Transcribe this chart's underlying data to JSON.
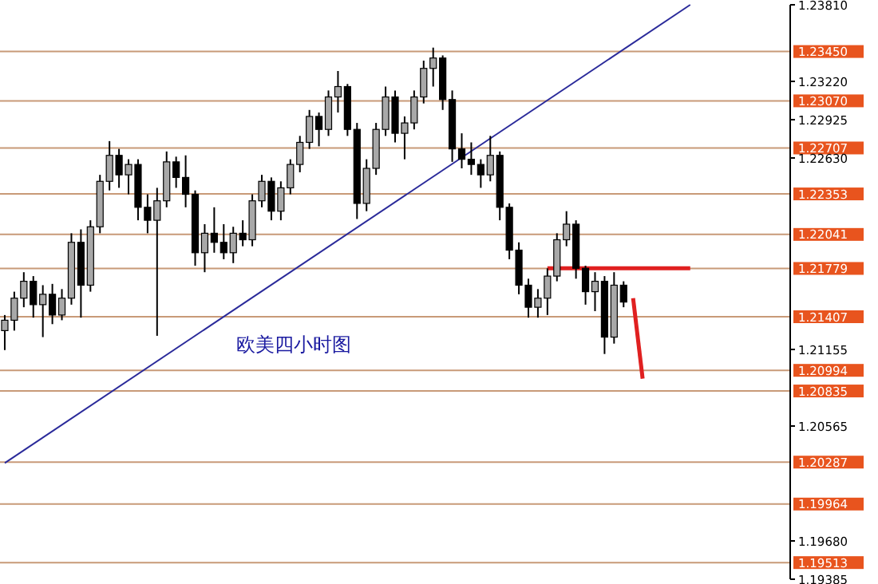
{
  "chart_data": {
    "type": "candlestick",
    "categories": [
      null,
      null,
      null,
      null,
      null,
      null,
      null,
      null,
      null,
      null,
      null,
      null,
      null,
      null,
      null,
      null,
      null,
      null,
      null,
      null,
      null,
      null,
      null,
      null,
      null,
      null,
      null,
      null,
      null,
      null,
      null,
      null,
      null,
      null,
      null,
      null,
      null,
      null,
      null,
      null,
      null,
      null,
      null,
      null,
      null,
      null,
      null,
      null,
      null,
      null,
      null,
      null,
      null,
      null,
      null,
      null,
      null,
      null,
      null,
      null,
      null,
      null,
      null,
      null,
      null,
      null,
      null,
      null,
      null,
      null,
      null,
      null,
      null,
      null,
      null,
      null,
      null,
      null,
      null,
      null,
      null,
      null,
      null
    ],
    "ohlc": [
      [
        1.213,
        1.2142,
        1.2115,
        1.2138
      ],
      [
        1.2138,
        1.216,
        1.213,
        1.2155
      ],
      [
        1.2155,
        1.2175,
        1.2148,
        1.2168
      ],
      [
        1.2168,
        1.2172,
        1.214,
        1.215
      ],
      [
        1.215,
        1.2165,
        1.2125,
        1.2158
      ],
      [
        1.2158,
        1.2166,
        1.2135,
        1.2142
      ],
      [
        1.2142,
        1.2162,
        1.2138,
        1.2155
      ],
      [
        1.2155,
        1.2205,
        1.215,
        1.2198
      ],
      [
        1.2198,
        1.2208,
        1.214,
        1.2165
      ],
      [
        1.2165,
        1.2215,
        1.216,
        1.221
      ],
      [
        1.221,
        1.225,
        1.2205,
        1.2245
      ],
      [
        1.2245,
        1.2276,
        1.2238,
        1.2265
      ],
      [
        1.2265,
        1.227,
        1.224,
        1.225
      ],
      [
        1.225,
        1.2262,
        1.2235,
        1.2258
      ],
      [
        1.2258,
        1.2262,
        1.2215,
        1.2225
      ],
      [
        1.2225,
        1.2235,
        1.2205,
        1.2215
      ],
      [
        1.2215,
        1.224,
        1.2126,
        1.223
      ],
      [
        1.223,
        1.2268,
        1.2225,
        1.226
      ],
      [
        1.226,
        1.2264,
        1.224,
        1.2248
      ],
      [
        1.2248,
        1.2265,
        1.2225,
        1.2235
      ],
      [
        1.2235,
        1.2238,
        1.218,
        1.219
      ],
      [
        1.219,
        1.2212,
        1.2175,
        1.2205
      ],
      [
        1.2205,
        1.2225,
        1.219,
        1.2198
      ],
      [
        1.2198,
        1.2212,
        1.2185,
        1.219
      ],
      [
        1.219,
        1.221,
        1.2182,
        1.2205
      ],
      [
        1.2205,
        1.2215,
        1.2195,
        1.22
      ],
      [
        1.22,
        1.2235,
        1.2195,
        1.223
      ],
      [
        1.223,
        1.225,
        1.2225,
        1.2245
      ],
      [
        1.2245,
        1.2248,
        1.2215,
        1.2222
      ],
      [
        1.2222,
        1.2245,
        1.2215,
        1.224
      ],
      [
        1.224,
        1.2262,
        1.2235,
        1.2258
      ],
      [
        1.2258,
        1.228,
        1.2252,
        1.2275
      ],
      [
        1.2275,
        1.23,
        1.227,
        1.2295
      ],
      [
        1.2295,
        1.2298,
        1.2272,
        1.2285
      ],
      [
        1.2285,
        1.2315,
        1.228,
        1.231
      ],
      [
        1.231,
        1.233,
        1.2298,
        1.2318
      ],
      [
        1.2318,
        1.232,
        1.228,
        1.2285
      ],
      [
        1.2285,
        1.229,
        1.2216,
        1.2228
      ],
      [
        1.2228,
        1.2262,
        1.2222,
        1.2255
      ],
      [
        1.2255,
        1.229,
        1.225,
        1.2285
      ],
      [
        1.2285,
        1.2318,
        1.228,
        1.231
      ],
      [
        1.231,
        1.2315,
        1.2275,
        1.2282
      ],
      [
        1.2282,
        1.2295,
        1.2262,
        1.229
      ],
      [
        1.229,
        1.2315,
        1.2285,
        1.231
      ],
      [
        1.231,
        1.2338,
        1.2305,
        1.2332
      ],
      [
        1.2332,
        1.2348,
        1.2318,
        1.234
      ],
      [
        1.234,
        1.2342,
        1.23,
        1.2308
      ],
      [
        1.2308,
        1.2315,
        1.226,
        1.227
      ],
      [
        1.227,
        1.2282,
        1.2255,
        1.2262
      ],
      [
        1.2262,
        1.2275,
        1.225,
        1.2258
      ],
      [
        1.2258,
        1.2262,
        1.224,
        1.225
      ],
      [
        1.225,
        1.228,
        1.2245,
        1.2265
      ],
      [
        1.2265,
        1.2268,
        1.2215,
        1.2225
      ],
      [
        1.2225,
        1.2228,
        1.2185,
        1.2192
      ],
      [
        1.2192,
        1.2198,
        1.2158,
        1.2165
      ],
      [
        1.2165,
        1.217,
        1.214,
        1.2148
      ],
      [
        1.2148,
        1.2162,
        1.214,
        1.2155
      ],
      [
        1.2155,
        1.2178,
        1.2142,
        1.2172
      ],
      [
        1.2172,
        1.2205,
        1.2168,
        1.22
      ],
      [
        1.22,
        1.2222,
        1.2195,
        1.2212
      ],
      [
        1.2212,
        1.2215,
        1.217,
        1.2178
      ],
      [
        1.2178,
        1.218,
        1.215,
        1.216
      ],
      [
        1.216,
        1.2175,
        1.2145,
        1.2168
      ],
      [
        1.2168,
        1.2172,
        1.2112,
        1.2125
      ],
      [
        1.2125,
        1.2175,
        1.212,
        1.2165
      ],
      [
        1.2165,
        1.2168,
        1.2148,
        1.2152
      ],
      null,
      null,
      null,
      null,
      null,
      null,
      null,
      null,
      null,
      null,
      null,
      null,
      null,
      null,
      null,
      null,
      null
    ],
    "series": [
      {
        "type": "line",
        "color": "#2a2a9a",
        "values": [
          1.2028,
          null,
          null,
          null,
          null,
          null,
          null,
          null,
          null,
          null,
          null,
          null,
          null,
          null,
          null,
          null,
          null,
          null,
          null,
          null,
          null,
          null,
          null,
          null,
          null,
          null,
          null,
          null,
          null,
          null,
          null,
          null,
          null,
          null,
          null,
          null,
          null,
          null,
          null,
          null,
          null,
          null,
          null,
          null,
          null,
          null,
          null,
          null,
          null,
          null,
          null,
          null,
          null,
          null,
          null,
          null,
          null,
          null,
          null,
          null,
          null,
          null,
          null,
          null,
          null,
          null,
          null,
          null,
          null,
          null,
          null,
          null,
          1.2381,
          null,
          null,
          null,
          null,
          null,
          null,
          null,
          null,
          null,
          null
        ]
      },
      {
        "type": "line",
        "color": "#e02020",
        "values": [
          null,
          null,
          null,
          null,
          null,
          null,
          null,
          null,
          null,
          null,
          null,
          null,
          null,
          null,
          null,
          null,
          null,
          null,
          null,
          null,
          null,
          null,
          null,
          null,
          null,
          null,
          null,
          null,
          null,
          null,
          null,
          null,
          null,
          null,
          null,
          null,
          null,
          null,
          null,
          null,
          null,
          null,
          null,
          null,
          null,
          null,
          null,
          null,
          null,
          null,
          null,
          null,
          null,
          null,
          null,
          null,
          null,
          1.2178,
          null,
          null,
          null,
          null,
          null,
          null,
          null,
          null,
          null,
          null,
          null,
          null,
          null,
          null,
          1.2178,
          null,
          null,
          null,
          null,
          null,
          null,
          null,
          null,
          null,
          null
        ]
      },
      {
        "type": "line",
        "color": "#e02020",
        "values": [
          null,
          null,
          null,
          null,
          null,
          null,
          null,
          null,
          null,
          null,
          null,
          null,
          null,
          null,
          null,
          null,
          null,
          null,
          null,
          null,
          null,
          null,
          null,
          null,
          null,
          null,
          null,
          null,
          null,
          null,
          null,
          null,
          null,
          null,
          null,
          null,
          null,
          null,
          null,
          null,
          null,
          null,
          null,
          null,
          null,
          null,
          null,
          null,
          null,
          null,
          null,
          null,
          null,
          null,
          null,
          null,
          null,
          null,
          null,
          null,
          null,
          null,
          null,
          null,
          null,
          null,
          1.2155,
          1.2093,
          null,
          null,
          null,
          null,
          null,
          null,
          null,
          null,
          null,
          null,
          null,
          null,
          null,
          null,
          null
        ]
      }
    ],
    "ylim": [
      1.19385,
      1.2381
    ],
    "yticks": [
      {
        "value": 1.2381,
        "label": "1.23810"
      },
      {
        "value": 1.2322,
        "label": "1.23220"
      },
      {
        "value": 1.22925,
        "label": "1.22925"
      },
      {
        "value": 1.2263,
        "label": "1.22630"
      },
      {
        "value": 1.21155,
        "label": "1.21155"
      },
      {
        "value": 1.20565,
        "label": "1.20565"
      },
      {
        "value": 1.1968,
        "label": "1.19680"
      },
      {
        "value": 1.19385,
        "label": "1.19385"
      }
    ],
    "ref_lines": [
      {
        "axis": "y",
        "value": 1.2345,
        "label": "1.23450",
        "color": "#c89a78"
      },
      {
        "axis": "y",
        "value": 1.2307,
        "label": "1.23070",
        "color": "#c89a78"
      },
      {
        "axis": "y",
        "value": 1.22707,
        "label": "1.22707",
        "color": "#c89a78"
      },
      {
        "axis": "y",
        "value": 1.22353,
        "label": "1.22353",
        "color": "#c89a78"
      },
      {
        "axis": "y",
        "value": 1.22041,
        "label": "1.22041",
        "color": "#c89a78"
      },
      {
        "axis": "y",
        "value": 1.21779,
        "label": "1.21779",
        "color": "#c89a78"
      },
      {
        "axis": "y",
        "value": 1.21407,
        "label": "1.21407",
        "color": "#c89a78"
      },
      {
        "axis": "y",
        "value": 1.20994,
        "label": "1.20994",
        "color": "#c89a78"
      },
      {
        "axis": "y",
        "value": 1.20835,
        "label": "1.20835",
        "color": "#c89a78"
      },
      {
        "axis": "y",
        "value": 1.20287,
        "label": "1.20287",
        "color": "#c89a78"
      },
      {
        "axis": "y",
        "value": 1.19964,
        "label": "1.19964",
        "color": "#c89a78"
      },
      {
        "axis": "y",
        "value": 1.19513,
        "label": "1.19513",
        "color": "#c89a78"
      }
    ],
    "annotations": [
      "欧美四小时图"
    ],
    "tick_labels": "y",
    "grid": false
  }
}
